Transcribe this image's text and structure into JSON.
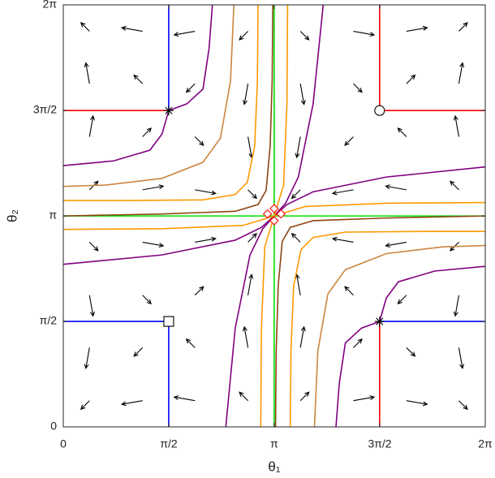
{
  "chart_data": {
    "type": "phase-portrait",
    "xlabel": "θ₁",
    "ylabel": "θ₂",
    "xlim": [
      0,
      6.2832
    ],
    "ylim": [
      0,
      6.2832
    ],
    "xticks": [
      {
        "value": 0,
        "label": "0"
      },
      {
        "value": 1.5708,
        "label": "π/2"
      },
      {
        "value": 3.1416,
        "label": "π"
      },
      {
        "value": 4.7124,
        "label": "3π/2"
      },
      {
        "value": 6.2832,
        "label": "2π"
      }
    ],
    "yticks": [
      {
        "value": 0,
        "label": "0"
      },
      {
        "value": 1.5708,
        "label": "π/2"
      },
      {
        "value": 3.1416,
        "label": "π"
      },
      {
        "value": 4.7124,
        "label": "3π/2"
      },
      {
        "value": 6.2832,
        "label": "2π"
      }
    ],
    "series": [
      {
        "color": "#00e000",
        "x": [
          3.14,
          3.14
        ],
        "y": [
          0,
          6.28
        ]
      },
      {
        "color": "#00e000",
        "x": [
          0,
          6.28
        ],
        "y": [
          3.14,
          3.14
        ]
      },
      {
        "color": "#8b4513",
        "x": [
          3.12,
          3.11,
          3.08,
          3.02,
          2.9,
          2.56,
          1.47,
          0
        ],
        "y": [
          6.28,
          5.15,
          4.18,
          3.52,
          3.31,
          3.21,
          3.17,
          3.14
        ]
      },
      {
        "color": "#8b4513",
        "x": [
          3.16,
          3.17,
          3.2,
          3.26,
          3.38,
          3.72,
          4.81,
          6.28
        ],
        "y": [
          0,
          1.13,
          2.1,
          2.76,
          2.97,
          3.07,
          3.11,
          3.14
        ]
      },
      {
        "color": "#ff9900",
        "x": [
          2.9,
          2.89,
          2.85,
          2.74,
          2.56,
          2.08,
          0.87,
          0
        ],
        "y": [
          6.28,
          5.15,
          4.18,
          3.64,
          3.46,
          3.38,
          3.37,
          3.37
        ]
      },
      {
        "color": "#ff9900",
        "x": [
          3.38,
          3.39,
          3.43,
          3.54,
          3.72,
          4.2,
          5.41,
          6.28
        ],
        "y": [
          0,
          1.13,
          2.1,
          2.64,
          2.82,
          2.9,
          2.91,
          2.91
        ]
      },
      {
        "color": "#cd853f",
        "x": [
          2.54,
          2.49,
          2.34,
          2.08,
          1.47,
          0.63,
          0
        ],
        "y": [
          6.28,
          5.15,
          4.3,
          3.94,
          3.7,
          3.6,
          3.58
        ]
      },
      {
        "color": "#cd853f",
        "x": [
          3.74,
          3.79,
          3.94,
          4.2,
          4.81,
          5.65,
          6.28
        ],
        "y": [
          0,
          1.13,
          1.98,
          2.34,
          2.58,
          2.68,
          2.7
        ]
      },
      {
        "color": "#800080",
        "x": [
          0,
          0.75,
          1.29,
          1.47,
          1.57
        ],
        "y": [
          3.89,
          3.96,
          4.12,
          4.36,
          4.71
        ]
      },
      {
        "color": "#800080",
        "x": [
          1.57,
          1.84,
          2.08,
          2.17,
          2.22
        ],
        "y": [
          4.71,
          4.81,
          5.03,
          5.63,
          6.28
        ]
      },
      {
        "color": "#800080",
        "x": [
          6.28,
          5.53,
          4.99,
          4.81,
          4.71
        ],
        "y": [
          2.39,
          2.32,
          2.16,
          1.92,
          1.57
        ]
      },
      {
        "color": "#800080",
        "x": [
          4.71,
          4.44,
          4.2,
          4.11,
          4.06
        ],
        "y": [
          1.57,
          1.47,
          1.25,
          0.65,
          0
        ]
      },
      {
        "color": "#800080",
        "x": [
          0,
          1.47,
          2.56,
          2.95,
          3.14,
          3.33,
          3.72,
          4.81,
          6.28
        ],
        "y": [
          2.42,
          2.56,
          2.78,
          2.97,
          3.14,
          3.31,
          3.5,
          3.72,
          3.87
        ]
      },
      {
        "color": "#800080",
        "x": [
          2.42,
          2.56,
          2.78,
          2.97,
          3.14,
          3.31,
          3.5,
          3.72,
          3.87
        ],
        "y": [
          0,
          1.47,
          2.56,
          2.95,
          3.14,
          3.33,
          3.72,
          4.81,
          6.28
        ]
      },
      {
        "color": "#ff9900",
        "x": [
          0,
          1.47,
          2.68,
          3.14,
          3.6,
          4.81,
          6.28
        ],
        "y": [
          2.94,
          2.95,
          3.0,
          3.14,
          3.28,
          3.33,
          3.34
        ]
      },
      {
        "color": "#ff9900",
        "x": [
          2.94,
          2.95,
          3.0,
          3.14,
          3.28,
          3.33,
          3.34
        ],
        "y": [
          0,
          1.47,
          2.68,
          3.14,
          3.6,
          4.81,
          6.28
        ]
      },
      {
        "color": "#ff0000",
        "x": [
          0,
          1.57
        ],
        "y": [
          4.71,
          4.71
        ]
      },
      {
        "color": "#ff0000",
        "x": [
          4.71,
          4.71,
          6.28
        ],
        "y": [
          6.28,
          4.71,
          4.71
        ]
      },
      {
        "color": "#ff0000",
        "x": [
          4.71,
          4.71
        ],
        "y": [
          1.57,
          0
        ]
      },
      {
        "color": "#0000ff",
        "x": [
          1.57,
          1.57
        ],
        "y": [
          4.71,
          6.28
        ]
      },
      {
        "color": "#0000ff",
        "x": [
          0,
          1.57,
          1.57
        ],
        "y": [
          1.57,
          1.57,
          0
        ]
      },
      {
        "color": "#0000ff",
        "x": [
          4.71,
          6.28
        ],
        "y": [
          1.57,
          1.57
        ]
      }
    ],
    "markers": [
      {
        "marker": "star",
        "color": "#000000",
        "x": [
          1.57,
          4.71
        ],
        "y": [
          4.71,
          1.57
        ]
      },
      {
        "marker": "square",
        "color": "#000000",
        "x": [
          1.57
        ],
        "y": [
          1.57
        ]
      },
      {
        "marker": "circle",
        "color": "#000000",
        "x": [
          4.71
        ],
        "y": [
          4.71
        ]
      },
      {
        "marker": "diamond",
        "color": "#ff0000",
        "x": [
          3.04,
          3.14,
          3.24,
          3.14
        ],
        "y": [
          3.17,
          3.25,
          3.17,
          3.07
        ]
      }
    ],
    "quiver": {
      "color": "#000000",
      "x": [
        0.39,
        1.18,
        1.96,
        2.75,
        3.53,
        4.32,
        5.11,
        5.89
      ],
      "y": [
        0.39,
        1.18,
        1.96,
        2.75,
        3.53,
        4.32,
        5.11,
        5.89
      ],
      "u": [
        [
          -0.35,
          -0.85,
          -0.85,
          -0.35,
          0.35,
          0.85,
          0.85,
          0.35
        ],
        [
          -0.15,
          -0.35,
          -0.35,
          -0.15,
          0.15,
          0.35,
          0.35,
          0.15
        ],
        [
          0.15,
          0.35,
          0.35,
          0.15,
          -0.15,
          -0.35,
          -0.35,
          -0.15
        ],
        [
          0.35,
          0.85,
          0.85,
          0.35,
          -0.35,
          -0.85,
          -0.85,
          -0.35
        ],
        [
          0.35,
          0.85,
          0.85,
          0.35,
          -0.35,
          -0.85,
          -0.85,
          -0.35
        ],
        [
          0.15,
          0.35,
          0.35,
          0.15,
          -0.15,
          -0.35,
          -0.35,
          -0.15
        ],
        [
          -0.15,
          -0.35,
          -0.35,
          -0.15,
          0.15,
          0.35,
          0.35,
          0.15
        ],
        [
          -0.35,
          -0.85,
          -0.85,
          -0.35,
          0.35,
          0.85,
          0.85,
          0.35
        ]
      ],
      "v": [
        [
          -0.35,
          -0.15,
          0.15,
          0.35,
          0.35,
          0.15,
          -0.15,
          -0.35
        ],
        [
          -0.85,
          -0.35,
          0.35,
          0.85,
          0.85,
          0.35,
          -0.35,
          -0.85
        ],
        [
          -0.85,
          -0.35,
          0.35,
          0.85,
          0.85,
          0.35,
          -0.35,
          -0.85
        ],
        [
          -0.35,
          -0.15,
          0.15,
          0.35,
          0.35,
          0.15,
          -0.15,
          -0.35
        ],
        [
          0.35,
          0.15,
          -0.15,
          -0.35,
          -0.35,
          -0.15,
          0.15,
          0.35
        ],
        [
          0.85,
          0.35,
          -0.35,
          -0.85,
          -0.85,
          -0.35,
          0.35,
          0.85
        ],
        [
          0.85,
          0.35,
          -0.35,
          -0.85,
          -0.85,
          -0.35,
          0.35,
          0.85
        ],
        [
          0.35,
          0.15,
          -0.15,
          -0.35,
          -0.35,
          -0.15,
          0.15,
          0.35
        ]
      ]
    }
  }
}
